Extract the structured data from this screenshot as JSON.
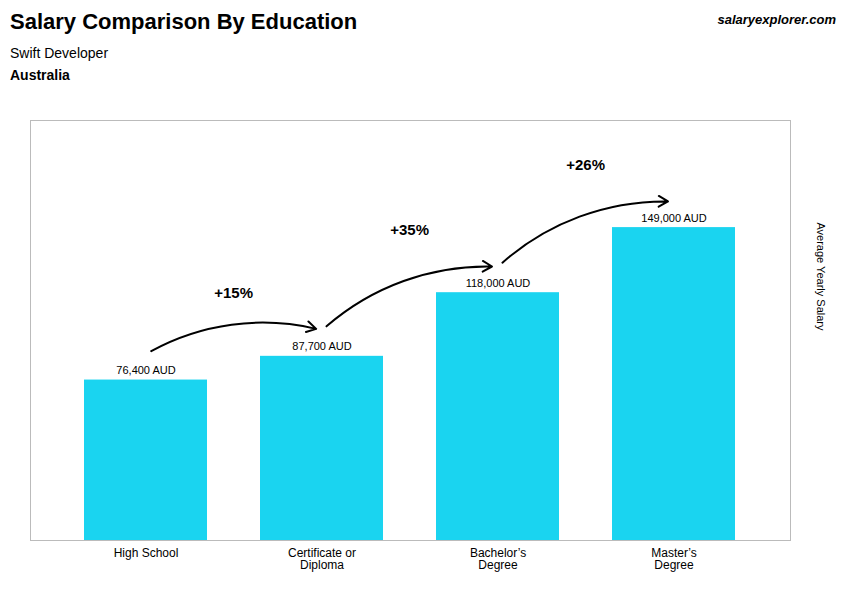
{
  "chart_data": {
    "type": "bar",
    "title": "Salary Comparison By Education",
    "subtitle": "Swift Developer",
    "country": "Australia",
    "brand": [
      "salary",
      "explorer",
      ".com"
    ],
    "categories": [
      "High School",
      "Certificate or\nDiploma",
      "Bachelor’s\nDegree",
      "Master’s\nDegree"
    ],
    "values": [
      76400,
      87700,
      118000,
      149000
    ],
    "value_labels": [
      "76,400 AUD",
      "87,700 AUD",
      "118,000 AUD",
      "149,000 AUD"
    ],
    "data_labels": true,
    "changes": [
      {
        "value": 15,
        "label": "+15%"
      },
      {
        "value": 35,
        "label": "+35%"
      },
      {
        "value": 26,
        "label": "+26%"
      }
    ],
    "ylabel": "Average Yearly Salary",
    "ylim": [
      0,
      200000
    ],
    "tick_labels": "x",
    "grid": false,
    "color": "#1ad4f0"
  }
}
